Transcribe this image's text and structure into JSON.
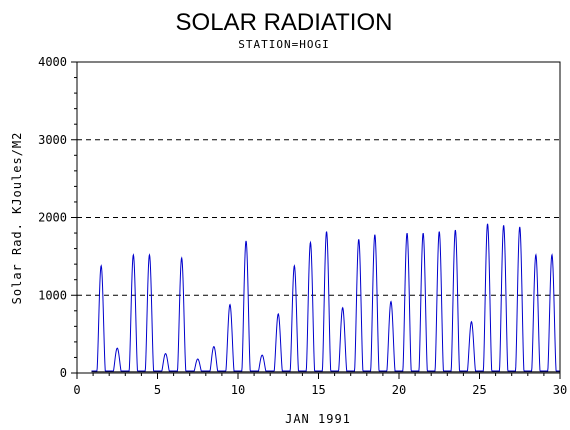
{
  "chart_data": {
    "type": "line",
    "title": "SOLAR RADIATION",
    "subtitle": "STATION=HOGI",
    "xlabel": "JAN 1991",
    "ylabel": "Solar Rad. KJoules/M2",
    "xlim": [
      0,
      30
    ],
    "ylim": [
      0,
      4000
    ],
    "x_ticks": [
      0,
      5,
      10,
      15,
      20,
      25,
      30
    ],
    "y_ticks": [
      0,
      1000,
      2000,
      3000,
      4000
    ],
    "grid": "horizontal dashed",
    "series": [
      {
        "color": "#0000cc",
        "daily_peaks": [
          {
            "day": 1.5,
            "peak": 1380
          },
          {
            "day": 2.5,
            "peak": 320
          },
          {
            "day": 3.5,
            "peak": 1520
          },
          {
            "day": 4.5,
            "peak": 1520
          },
          {
            "day": 5.5,
            "peak": 250
          },
          {
            "day": 6.5,
            "peak": 1480
          },
          {
            "day": 7.5,
            "peak": 180
          },
          {
            "day": 8.5,
            "peak": 340
          },
          {
            "day": 9.5,
            "peak": 880
          },
          {
            "day": 10.5,
            "peak": 1700
          },
          {
            "day": 11.5,
            "peak": 230
          },
          {
            "day": 12.5,
            "peak": 760
          },
          {
            "day": 13.5,
            "peak": 1380
          },
          {
            "day": 14.5,
            "peak": 1680
          },
          {
            "day": 15.5,
            "peak": 1820
          },
          {
            "day": 16.5,
            "peak": 840
          },
          {
            "day": 17.5,
            "peak": 1720
          },
          {
            "day": 18.5,
            "peak": 1780
          },
          {
            "day": 19.5,
            "peak": 920
          },
          {
            "day": 20.5,
            "peak": 1800
          },
          {
            "day": 21.5,
            "peak": 1800
          },
          {
            "day": 22.5,
            "peak": 1820
          },
          {
            "day": 23.5,
            "peak": 1840
          },
          {
            "day": 24.5,
            "peak": 660
          },
          {
            "day": 25.5,
            "peak": 1920
          },
          {
            "day": 26.5,
            "peak": 1900
          },
          {
            "day": 27.5,
            "peak": 1880
          },
          {
            "day": 28.5,
            "peak": 1520
          },
          {
            "day": 29.5,
            "peak": 1520
          }
        ]
      }
    ]
  }
}
